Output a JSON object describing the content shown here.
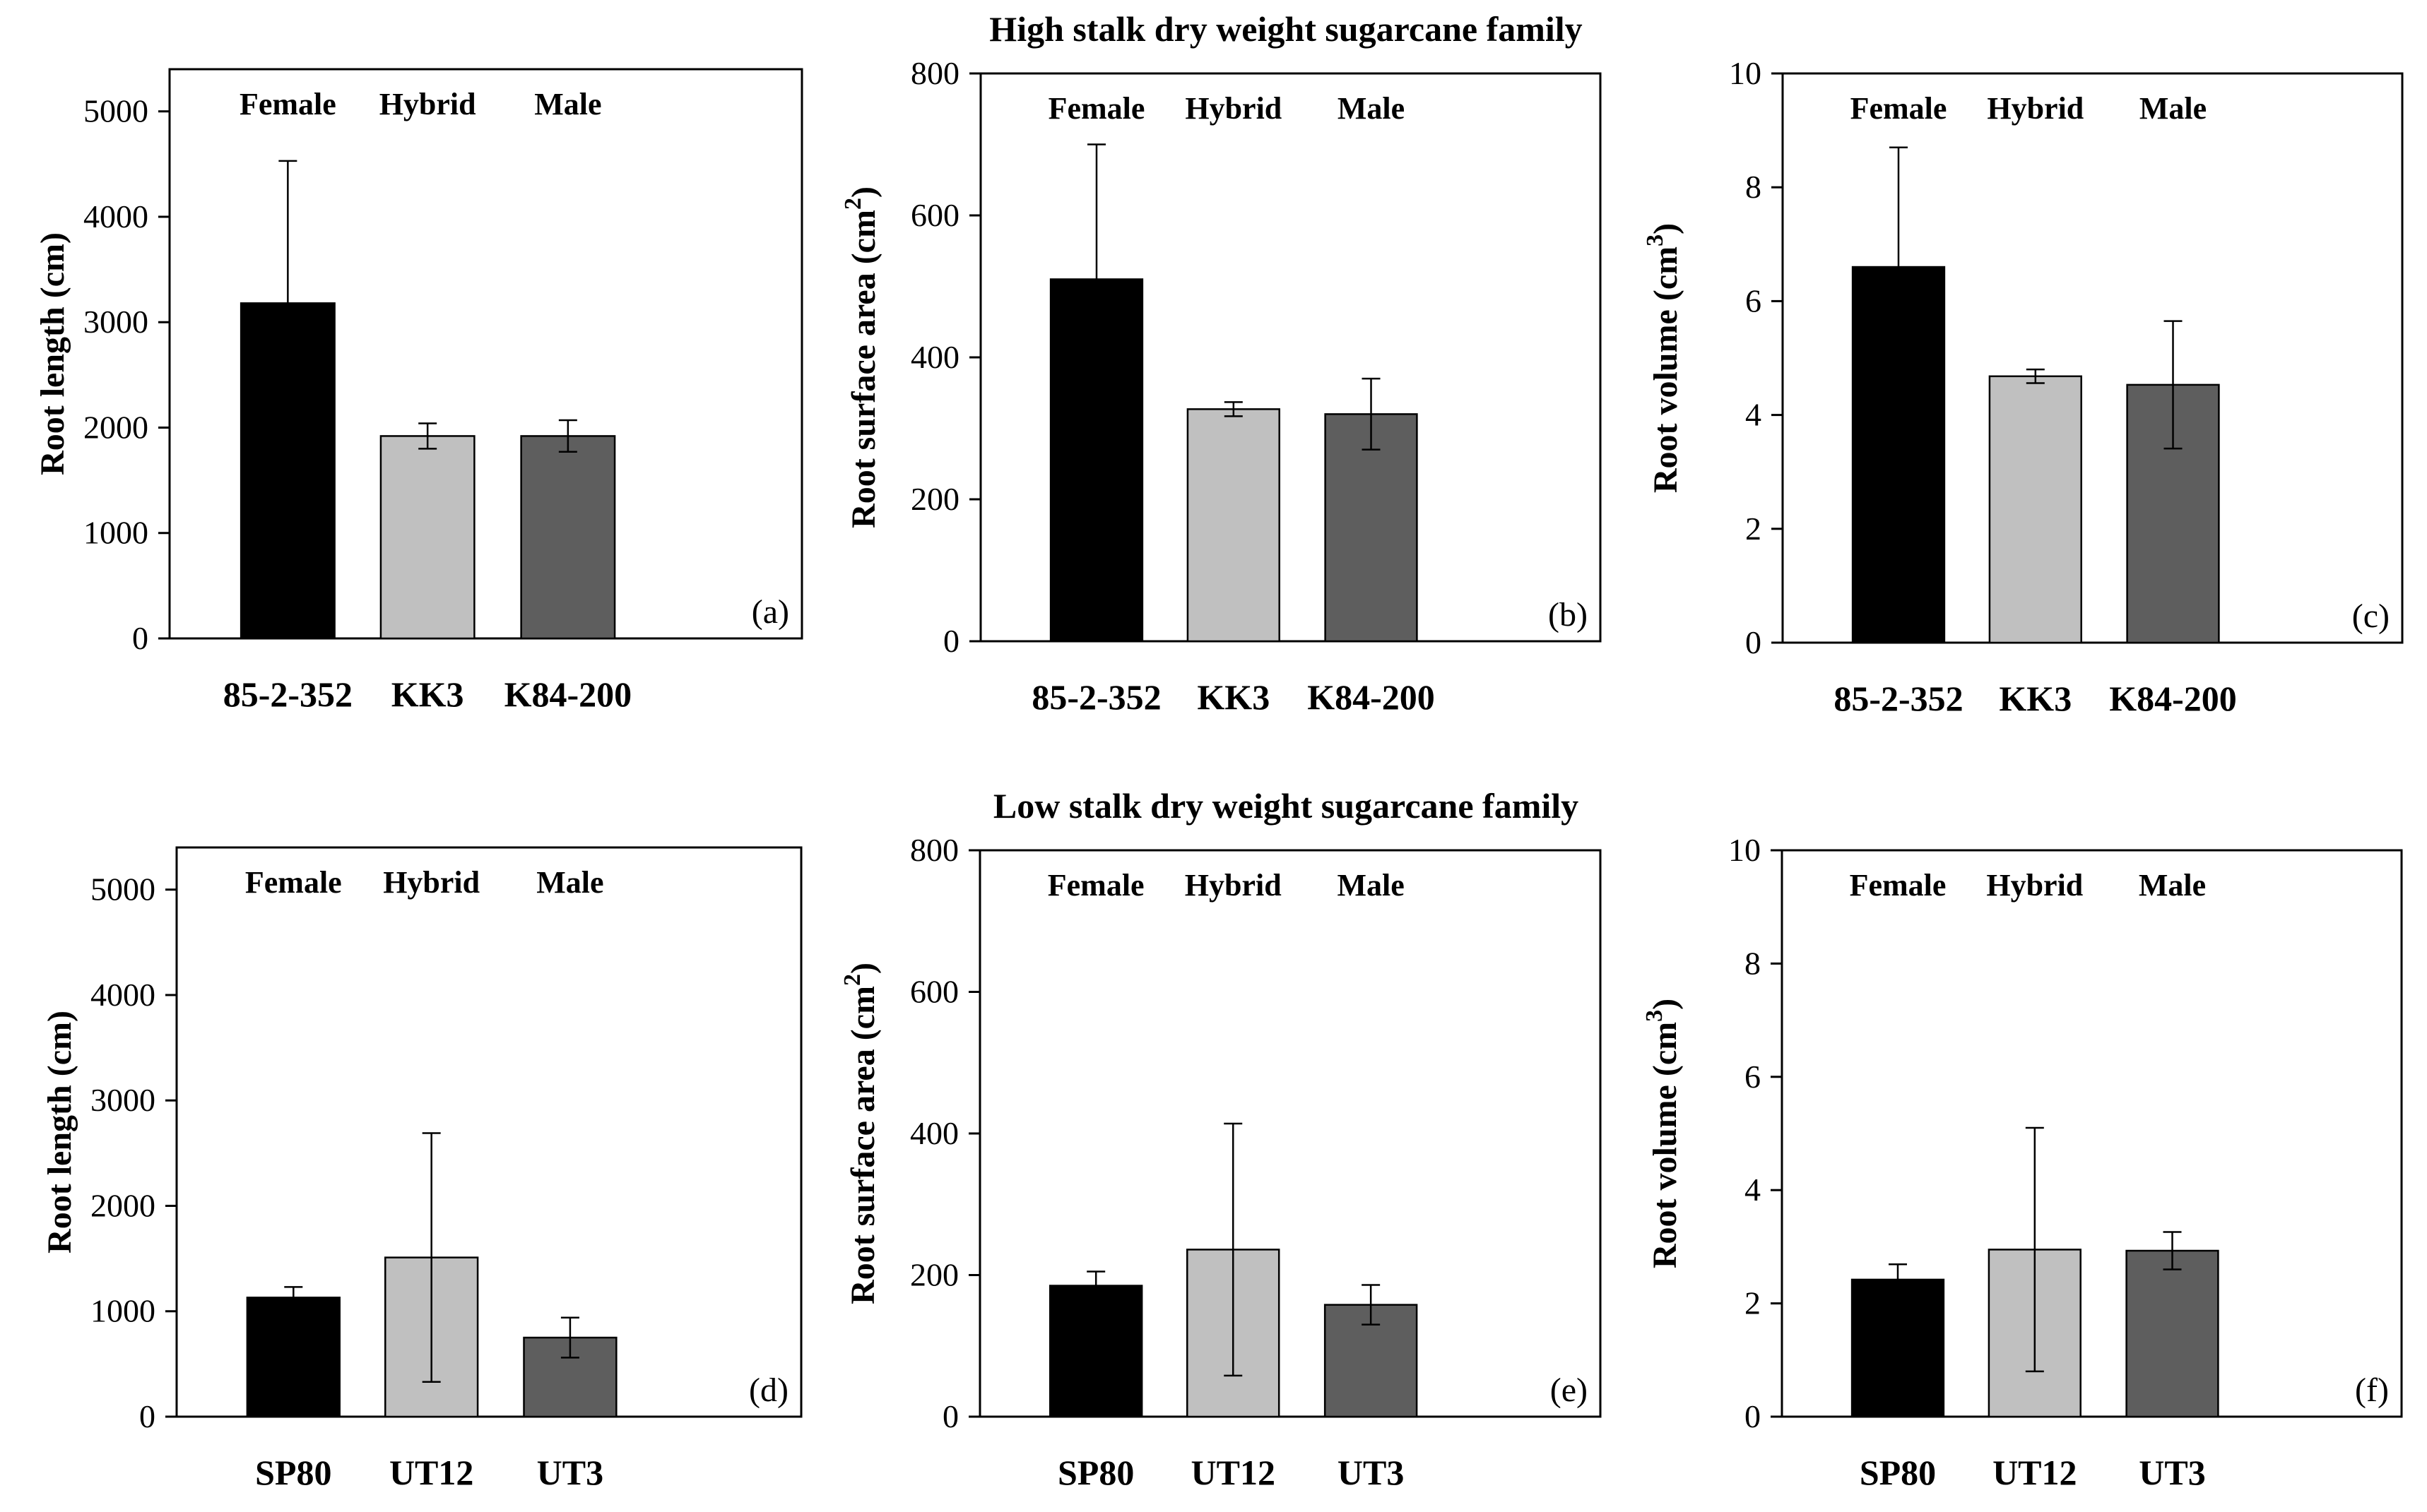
{
  "row_titles": [
    "High stalk dry weight sugarcane family",
    "Low stalk dry weight sugarcane family"
  ],
  "colors": {
    "female": "#000000",
    "hybrid": "#c0c0c0",
    "male": "#5e5e5e"
  },
  "chart_data": [
    {
      "type": "bar",
      "panel": "(a)",
      "row": 0,
      "title": "High stalk dry weight sugarcane family",
      "roles": [
        "Female",
        "Hybrid",
        "Male"
      ],
      "categories": [
        "85-2-352",
        "KK3",
        "K84-200"
      ],
      "values": [
        3180,
        1920,
        1920
      ],
      "errors": [
        1350,
        120,
        150
      ],
      "ylabel": "Root length (cm)",
      "ylabel_sup": "",
      "ylabel_tail": "",
      "ylim": [
        0,
        5400
      ],
      "yticks": [
        0,
        1000,
        2000,
        3000,
        4000,
        5000
      ]
    },
    {
      "type": "bar",
      "panel": "(b)",
      "row": 0,
      "title": "High stalk dry weight sugarcane family",
      "roles": [
        "Female",
        "Hybrid",
        "Male"
      ],
      "categories": [
        "85-2-352",
        "KK3",
        "K84-200"
      ],
      "values": [
        510,
        327,
        320
      ],
      "errors": [
        190,
        10,
        50
      ],
      "ylabel": "Root surface area (cm",
      "ylabel_sup": "2",
      "ylabel_tail": ")",
      "ylim": [
        0,
        800
      ],
      "yticks": [
        0,
        200,
        400,
        600,
        800
      ]
    },
    {
      "type": "bar",
      "panel": "(c)",
      "row": 0,
      "title": "High stalk dry weight sugarcane family",
      "roles": [
        "Female",
        "Hybrid",
        "Male"
      ],
      "categories": [
        "85-2-352",
        "KK3",
        "K84-200"
      ],
      "values": [
        6.6,
        4.68,
        4.53
      ],
      "errors": [
        2.1,
        0.12,
        1.12
      ],
      "ylabel": "Root volume (cm",
      "ylabel_sup": "3",
      "ylabel_tail": ")",
      "ylim": [
        0,
        10
      ],
      "yticks": [
        0,
        2,
        4,
        6,
        8,
        10
      ]
    },
    {
      "type": "bar",
      "panel": "(d)",
      "row": 1,
      "title": "Low stalk dry weight sugarcane family",
      "roles": [
        "Female",
        "Hybrid",
        "Male"
      ],
      "categories": [
        "SP80",
        "UT12",
        "UT3"
      ],
      "values": [
        1130,
        1510,
        750
      ],
      "errors": [
        100,
        1180,
        190
      ],
      "ylabel": "Root length (cm)",
      "ylabel_sup": "",
      "ylabel_tail": "",
      "ylim": [
        0,
        5400
      ],
      "yticks": [
        0,
        1000,
        2000,
        3000,
        4000,
        5000
      ]
    },
    {
      "type": "bar",
      "panel": "(e)",
      "row": 1,
      "title": "Low stalk dry weight sugarcane family",
      "roles": [
        "Female",
        "Hybrid",
        "Male"
      ],
      "categories": [
        "SP80",
        "UT12",
        "UT3"
      ],
      "values": [
        185,
        236,
        158
      ],
      "errors": [
        20,
        178,
        28
      ],
      "ylabel": "Root surface area (cm",
      "ylabel_sup": "2",
      "ylabel_tail": ")",
      "ylim": [
        0,
        800
      ],
      "yticks": [
        0,
        200,
        400,
        600,
        800
      ]
    },
    {
      "type": "bar",
      "panel": "(f)",
      "row": 1,
      "title": "Low stalk dry weight sugarcane family",
      "roles": [
        "Female",
        "Hybrid",
        "Male"
      ],
      "categories": [
        "SP80",
        "UT12",
        "UT3"
      ],
      "values": [
        2.42,
        2.95,
        2.93
      ],
      "errors": [
        0.27,
        2.15,
        0.33
      ],
      "ylabel": "Root volume (cm",
      "ylabel_sup": "3",
      "ylabel_tail": ")",
      "ylim": [
        0,
        10
      ],
      "yticks": [
        0,
        2,
        4,
        6,
        8,
        10
      ]
    }
  ]
}
